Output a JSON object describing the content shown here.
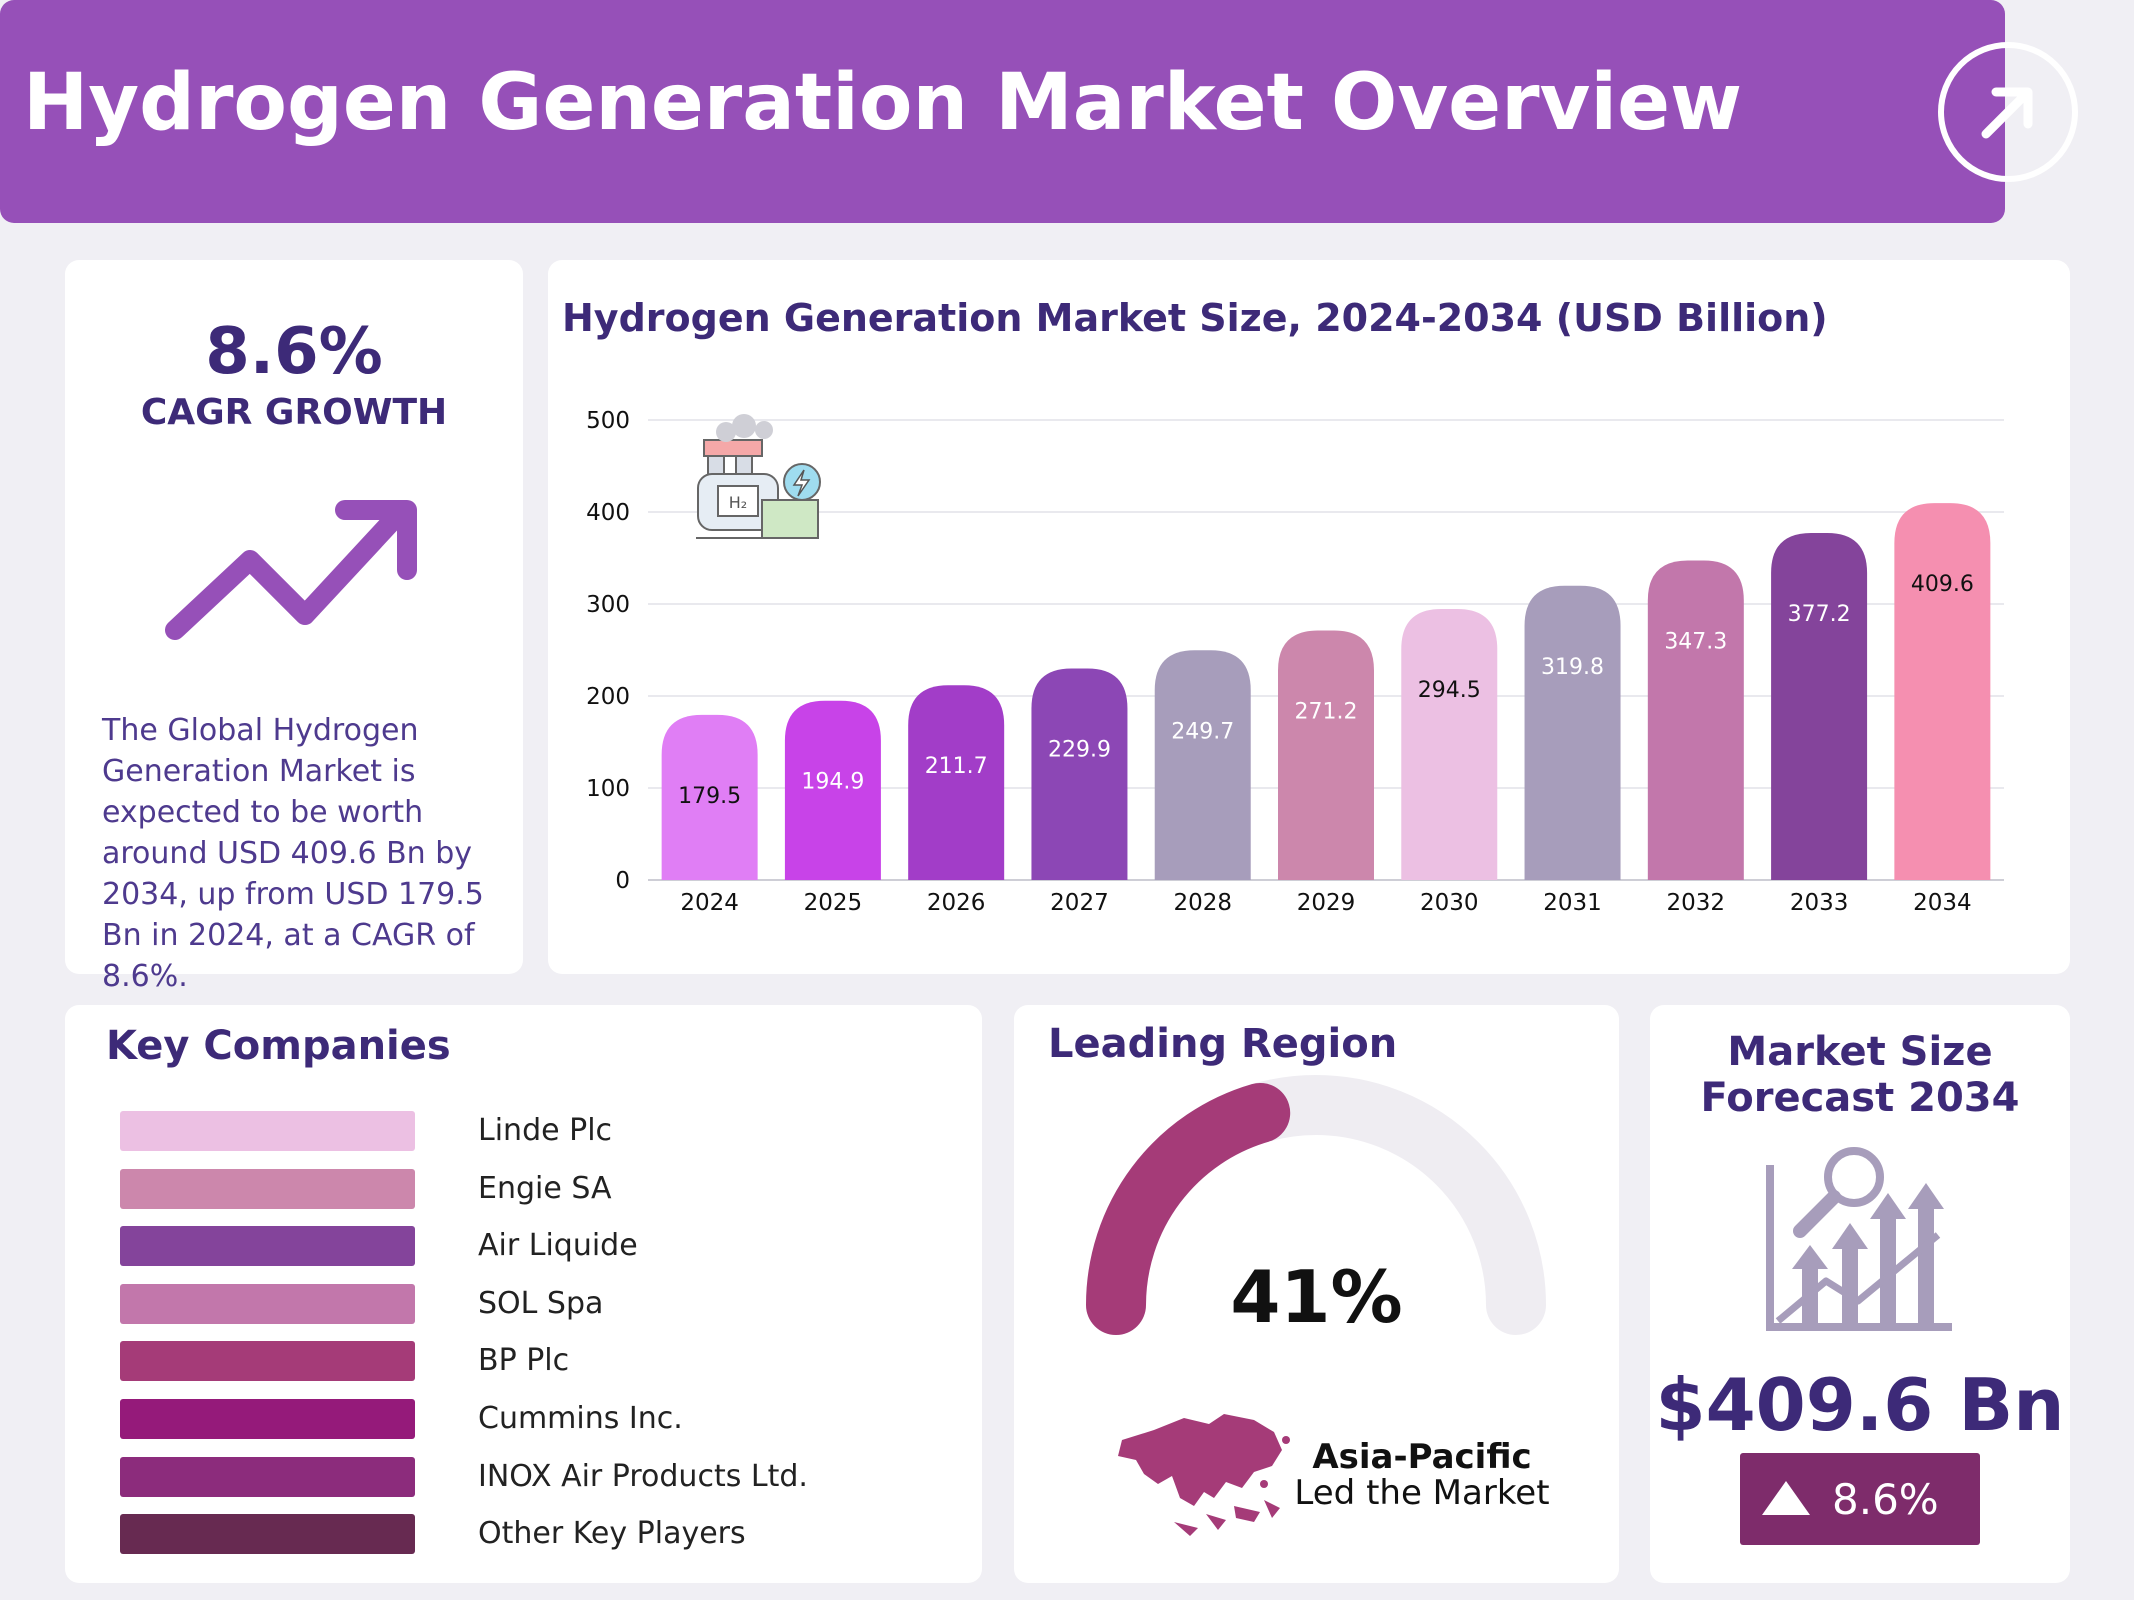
{
  "header": {
    "title": "Hydrogen Generation Market Overview",
    "icon": "arrow-up-right-icon"
  },
  "cagr": {
    "value": "8.6%",
    "label": "CAGR GROWTH",
    "icon": "trend-up-arrow-icon",
    "description": "The Global Hydrogen Generation Market is expected to be worth around USD 409.6 Bn by 2034, up from USD 179.5 Bn in 2024, at a CAGR of 8.6%."
  },
  "chart_data": {
    "type": "bar",
    "title": "Hydrogen Generation Market Size, 2024-2034 (USD Billion)",
    "categories": [
      "2024",
      "2025",
      "2026",
      "2027",
      "2028",
      "2029",
      "2030",
      "2031",
      "2032",
      "2033",
      "2034"
    ],
    "values": [
      179.5,
      194.9,
      211.7,
      229.9,
      249.7,
      271.2,
      294.5,
      319.8,
      347.3,
      377.2,
      409.6
    ],
    "value_labels": [
      "179.5",
      "194.9",
      "211.7",
      "229.9",
      "249.7",
      "271.2",
      "294.5",
      "319.8",
      "347.3",
      "377.2",
      "409.6"
    ],
    "colors": [
      "#e07ef5",
      "#c843e8",
      "#a23dc8",
      "#8c47b5",
      "#a79dbb",
      "#cc87ac",
      "#ecc0e3",
      "#a79dbb",
      "#c277ab",
      "#84449b",
      "#f58fb0"
    ],
    "label_colors": [
      "#111111",
      "#ffffff",
      "#ffffff",
      "#ffffff",
      "#ffffff",
      "#ffffff",
      "#111111",
      "#ffffff",
      "#ffffff",
      "#ffffff",
      "#111111"
    ],
    "yticks": [
      0,
      100,
      200,
      300,
      400,
      500
    ],
    "ylim": [
      0,
      500
    ],
    "grid": true,
    "xlabel": "",
    "ylabel": "",
    "decoration_icon": "hydrogen-plant-icon"
  },
  "companies": {
    "title": "Key Companies",
    "items": [
      {
        "name": "Linde Plc",
        "color": "#ecc0e3"
      },
      {
        "name": "Engie SA",
        "color": "#cc87ac"
      },
      {
        "name": "Air Liquide",
        "color": "#84449b"
      },
      {
        "name": "SOL Spa",
        "color": "#c277ab"
      },
      {
        "name": "BP Plc",
        "color": "#a53b78"
      },
      {
        "name": "Cummins Inc.",
        "color": "#951a7a"
      },
      {
        "name": "INOX Air Products Ltd.",
        "color": "#8c2c7c"
      },
      {
        "name": "Other Key Players",
        "color": "#672a51"
      }
    ]
  },
  "region": {
    "title": "Leading Region",
    "share_percent": 41,
    "share_label": "41%",
    "gauge_color": "#a53b78",
    "gauge_track_color": "#efedf2",
    "name": "Asia-Pacific",
    "subtitle": "Led the Market",
    "map_icon": "asia-pacific-map-icon"
  },
  "forecast": {
    "title_line1": "Market Size",
    "title_line2": "Forecast 2034",
    "icon": "growth-analysis-icon",
    "value": "$409.6 Bn",
    "growth": "8.6%",
    "badge_color": "#7e2c6b"
  }
}
